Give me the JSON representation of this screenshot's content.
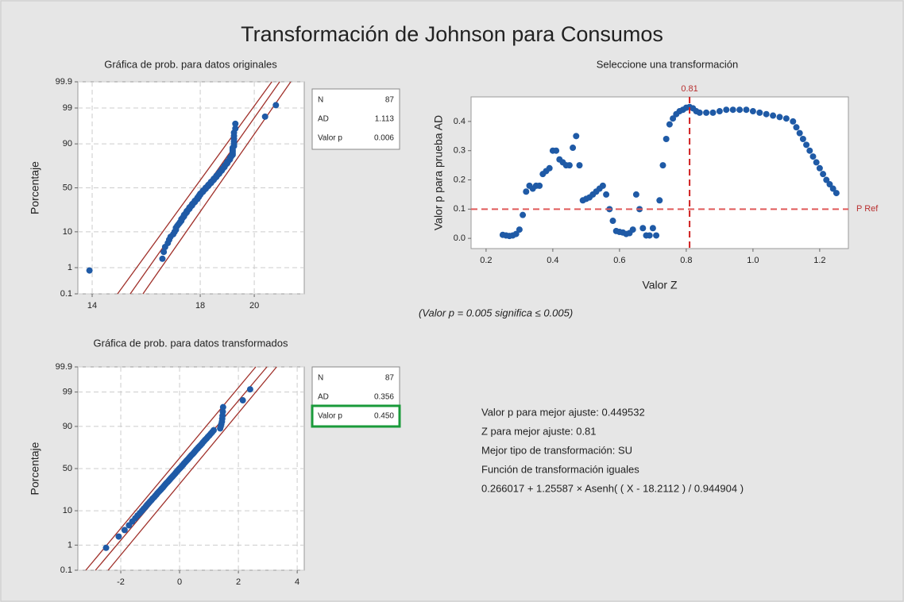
{
  "title": "Transformación de Johnson para Consumos",
  "footnote": "(Valor p = 0.005 significa ≤ 0.005)",
  "summary": [
    "Valor p para mejor ajuste: 0.449532",
    "Z para mejor ajuste: 0.81",
    "Mejor tipo de transformación: SU",
    "Función de transformación iguales",
    "0.266017 + 1.25587 × Asenh( ( X - 18.2112 ) / 0.944904 )"
  ],
  "chart_data": [
    {
      "type": "probability",
      "title": "Gráfica de prob. para datos originales",
      "ylabel": "Porcentaje",
      "yscale": "normal",
      "grid": true,
      "color": "#1f5aa6",
      "line_color": "#a0302a",
      "xlim": [
        13.47,
        21.85
      ],
      "xticks": [
        14,
        18,
        20
      ],
      "ylim": [
        0.1,
        99.9
      ],
      "yticks": [
        0.1,
        1,
        10,
        50,
        90,
        99,
        99.9
      ],
      "x": [
        13.9,
        16.6,
        16.65,
        16.7,
        16.8,
        16.85,
        16.9,
        17.0,
        17.05,
        17.1,
        17.1,
        17.15,
        17.2,
        17.25,
        17.3,
        17.3,
        17.35,
        17.4,
        17.4,
        17.45,
        17.5,
        17.5,
        17.55,
        17.6,
        17.6,
        17.65,
        17.7,
        17.7,
        17.75,
        17.8,
        17.8,
        17.85,
        17.9,
        17.9,
        17.95,
        17.95,
        18.0,
        18.0,
        18.05,
        18.1,
        18.1,
        18.15,
        18.2,
        18.2,
        18.25,
        18.3,
        18.3,
        18.35,
        18.4,
        18.4,
        18.45,
        18.5,
        18.5,
        18.55,
        18.6,
        18.6,
        18.65,
        18.7,
        18.7,
        18.75,
        18.8,
        18.8,
        18.85,
        18.9,
        18.9,
        18.95,
        19.0,
        19.0,
        19.05,
        19.1,
        19.1,
        19.15,
        19.2,
        19.2,
        19.2,
        19.2,
        19.2,
        19.25,
        19.25,
        19.25,
        19.25,
        19.25,
        19.25,
        19.3,
        19.3,
        20.4,
        20.8
      ],
      "y": [
        0.8,
        1.94,
        3.09,
        4.23,
        5.38,
        6.52,
        7.67,
        8.81,
        9.95,
        11.1,
        12.2,
        13.4,
        14.5,
        15.7,
        16.8,
        18.0,
        19.1,
        20.3,
        21.4,
        22.5,
        23.7,
        24.8,
        26.0,
        27.1,
        28.3,
        29.4,
        30.5,
        31.7,
        32.8,
        34.0,
        35.1,
        36.3,
        37.4,
        38.6,
        39.7,
        40.8,
        42.0,
        43.1,
        44.3,
        45.4,
        46.6,
        47.7,
        48.9,
        50.0,
        51.1,
        52.3,
        53.4,
        54.6,
        55.7,
        56.9,
        58.0,
        59.2,
        60.3,
        61.4,
        62.6,
        63.7,
        64.9,
        66.0,
        67.2,
        68.3,
        69.5,
        70.6,
        71.7,
        72.9,
        74.0,
        75.2,
        76.3,
        77.5,
        78.6,
        79.7,
        80.9,
        82.0,
        83.2,
        84.3,
        85.5,
        86.6,
        87.8,
        88.9,
        90.0,
        91.2,
        92.3,
        93.5,
        94.6,
        95.8,
        96.9,
        98.1,
        99.2
      ],
      "lines": [
        {
          "x": [
            14.94,
            20.65
          ],
          "y": [
            0.1,
            99.9
          ]
        },
        {
          "x": [
            15.41,
            20.94
          ],
          "y": [
            0.1,
            99.9
          ]
        },
        {
          "x": [
            15.88,
            21.35
          ],
          "y": [
            0.1,
            99.9
          ]
        }
      ],
      "stats": [
        {
          "label": "N",
          "value": "87"
        },
        {
          "label": "AD",
          "value": "1.113"
        },
        {
          "label": "Valor p",
          "value": "0.006"
        }
      ]
    },
    {
      "type": "probability",
      "title": "Gráfica de prob. para datos transformados",
      "ylabel": "Porcentaje",
      "yscale": "normal",
      "grid": true,
      "color": "#1f5aa6",
      "line_color": "#a0302a",
      "highlight_row": 2,
      "highlight_color": "#1a9a3a",
      "xlim": [
        -3.46,
        4.24
      ],
      "xticks": [
        -2,
        0,
        2,
        4
      ],
      "ylim": [
        0.1,
        99.9
      ],
      "yticks": [
        0.1,
        1,
        10,
        50,
        90,
        99,
        99.9
      ],
      "x": [
        -2.5,
        -2.07,
        -1.87,
        -1.72,
        -1.61,
        -1.51,
        -1.43,
        -1.35,
        -1.28,
        -1.22,
        -1.16,
        -1.11,
        -1.06,
        -1.01,
        -0.96,
        -0.92,
        -0.87,
        -0.83,
        -0.79,
        -0.76,
        -0.72,
        -0.68,
        -0.64,
        -0.61,
        -0.57,
        -0.54,
        -0.51,
        -0.48,
        -0.45,
        -0.41,
        -0.38,
        -0.35,
        -0.32,
        -0.29,
        -0.26,
        -0.23,
        -0.2,
        -0.17,
        -0.14,
        -0.12,
        -0.09,
        -0.06,
        -0.03,
        0,
        0.03,
        0.06,
        0.09,
        0.12,
        0.14,
        0.17,
        0.2,
        0.23,
        0.26,
        0.29,
        0.32,
        0.35,
        0.38,
        0.41,
        0.45,
        0.48,
        0.51,
        0.54,
        0.57,
        0.61,
        0.64,
        0.68,
        0.72,
        0.76,
        0.79,
        0.83,
        0.87,
        0.92,
        0.96,
        1.01,
        1.06,
        1.11,
        1.16,
        1.38,
        1.4,
        1.42,
        1.44,
        1.45,
        1.46,
        1.47,
        1.48,
        2.15,
        2.4
      ],
      "y": [
        0.8,
        1.94,
        3.09,
        4.23,
        5.38,
        6.52,
        7.67,
        8.81,
        9.95,
        11.1,
        12.2,
        13.4,
        14.5,
        15.7,
        16.8,
        18.0,
        19.1,
        20.3,
        21.4,
        22.5,
        23.7,
        24.8,
        26.0,
        27.1,
        28.3,
        29.4,
        30.5,
        31.7,
        32.8,
        34.0,
        35.1,
        36.3,
        37.4,
        38.6,
        39.7,
        40.8,
        42.0,
        43.1,
        44.3,
        45.4,
        46.6,
        47.7,
        48.9,
        50.0,
        51.1,
        52.3,
        53.4,
        54.6,
        55.7,
        56.9,
        58.0,
        59.2,
        60.3,
        61.4,
        62.6,
        63.7,
        64.9,
        66.0,
        67.2,
        68.3,
        69.5,
        70.6,
        71.7,
        72.9,
        74.0,
        75.2,
        76.3,
        77.5,
        78.6,
        79.7,
        80.9,
        82.0,
        83.2,
        84.3,
        85.5,
        86.6,
        87.8,
        88.9,
        90.0,
        91.2,
        92.3,
        93.5,
        94.6,
        95.8,
        96.9,
        98.1,
        99.2
      ],
      "lines": [
        {
          "x": [
            -3.19,
            2.59
          ],
          "y": [
            0.1,
            99.9
          ]
        },
        {
          "x": [
            -2.86,
            2.97
          ],
          "y": [
            0.1,
            99.9
          ]
        },
        {
          "x": [
            -2.43,
            3.3
          ],
          "y": [
            0.1,
            99.9
          ]
        }
      ],
      "stats": [
        {
          "label": "N",
          "value": "87"
        },
        {
          "label": "AD",
          "value": "0.356"
        },
        {
          "label": "Valor p",
          "value": "0.450"
        }
      ]
    },
    {
      "type": "scatter",
      "title": "Seleccione una transformación",
      "xlabel": "Valor Z",
      "ylabel": "Valor p para prueba AD",
      "color": "#1f5aa6",
      "ref_color": "#e05a5a",
      "ref_text_color": "#b83030",
      "xlim": [
        0.155,
        1.286
      ],
      "xticks": [
        0.2,
        0.4,
        0.6,
        0.8,
        {
          "value": 1,
          "label": "1.0"
        },
        1.2
      ],
      "ylim": [
        -0.035,
        0.484
      ],
      "yticks": [
        {
          "value": 0,
          "label": "0.0"
        },
        0.1,
        0.2,
        0.3,
        0.4
      ],
      "ref_lines": [
        {
          "axis": "y",
          "value": 0.1,
          "label": "P Ref"
        },
        {
          "axis": "x",
          "value": 0.81,
          "label": "0.81"
        }
      ],
      "x": [
        0.25,
        0.26,
        0.27,
        0.28,
        0.29,
        0.3,
        0.31,
        0.32,
        0.33,
        0.34,
        0.35,
        0.36,
        0.37,
        0.38,
        0.39,
        0.4,
        0.41,
        0.42,
        0.43,
        0.44,
        0.45,
        0.46,
        0.47,
        0.48,
        0.49,
        0.5,
        0.51,
        0.52,
        0.53,
        0.54,
        0.55,
        0.56,
        0.57,
        0.58,
        0.59,
        0.6,
        0.61,
        0.62,
        0.63,
        0.64,
        0.65,
        0.66,
        0.67,
        0.68,
        0.69,
        0.7,
        0.71,
        0.72,
        0.73,
        0.74,
        0.75,
        0.76,
        0.77,
        0.78,
        0.79,
        0.8,
        0.81,
        0.82,
        0.83,
        0.84,
        0.86,
        0.88,
        0.9,
        0.92,
        0.94,
        0.96,
        0.98,
        1.0,
        1.02,
        1.04,
        1.06,
        1.08,
        1.1,
        1.12,
        1.13,
        1.14,
        1.15,
        1.16,
        1.17,
        1.18,
        1.19,
        1.2,
        1.21,
        1.22,
        1.23,
        1.24,
        1.25
      ],
      "y": [
        0.012,
        0.01,
        0.008,
        0.01,
        0.015,
        0.03,
        0.08,
        0.16,
        0.18,
        0.17,
        0.18,
        0.18,
        0.22,
        0.23,
        0.24,
        0.3,
        0.3,
        0.27,
        0.26,
        0.25,
        0.25,
        0.31,
        0.35,
        0.25,
        0.13,
        0.135,
        0.14,
        0.15,
        0.16,
        0.17,
        0.18,
        0.15,
        0.1,
        0.06,
        0.025,
        0.022,
        0.02,
        0.015,
        0.018,
        0.03,
        0.15,
        0.1,
        0.035,
        0.01,
        0.01,
        0.035,
        0.01,
        0.13,
        0.25,
        0.34,
        0.39,
        0.41,
        0.425,
        0.435,
        0.44,
        0.447,
        0.4495,
        0.445,
        0.435,
        0.43,
        0.43,
        0.43,
        0.435,
        0.44,
        0.44,
        0.44,
        0.44,
        0.435,
        0.43,
        0.425,
        0.42,
        0.415,
        0.41,
        0.4,
        0.38,
        0.36,
        0.34,
        0.32,
        0.3,
        0.28,
        0.26,
        0.24,
        0.22,
        0.2,
        0.185,
        0.17,
        0.155
      ]
    }
  ]
}
